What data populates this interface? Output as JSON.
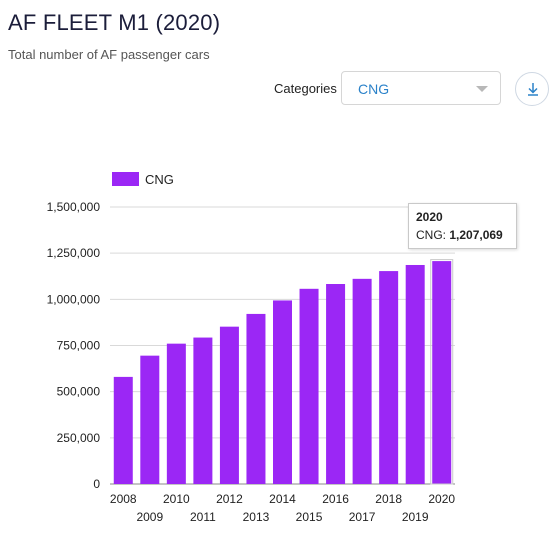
{
  "header": {
    "title": "AF FLEET M1 (2020)",
    "subtitle": "Total number of AF passenger cars"
  },
  "filters": {
    "categories_label": "Categories",
    "selected": "CNG"
  },
  "icons": {
    "download": "download-icon",
    "caret": "chevron-down-icon"
  },
  "colors": {
    "bar": "#9b27f5",
    "accent": "#2b82c9"
  },
  "tooltip": {
    "year": "2020",
    "series": "CNG:",
    "value": "1,207,069"
  },
  "chart_data": {
    "type": "bar",
    "categories": [
      "2008",
      "2009",
      "2010",
      "2011",
      "2012",
      "2013",
      "2014",
      "2015",
      "2016",
      "2017",
      "2018",
      "2019",
      "2020"
    ],
    "series": [
      {
        "name": "CNG",
        "values": [
          580000,
          695000,
          760000,
          793000,
          852000,
          921000,
          994000,
          1057000,
          1083000,
          1111000,
          1153000,
          1186000,
          1207069
        ]
      }
    ],
    "y_ticks": [
      "0",
      "250,000",
      "500,000",
      "750,000",
      "1,000,000",
      "1,250,000",
      "1,500,000"
    ],
    "ylim": [
      0,
      1500000
    ],
    "legend": "top-left",
    "grid": true
  }
}
